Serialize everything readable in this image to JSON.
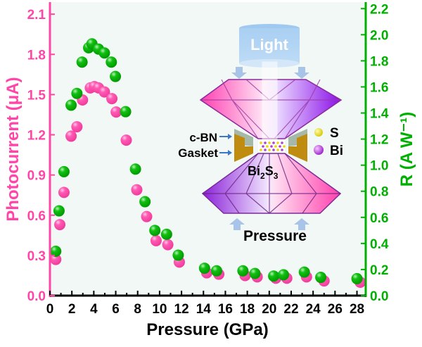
{
  "chart_data": {
    "type": "scatter",
    "xlabel": "Pressure (GPa)",
    "ylabel_left": "Photocurrent (μA)",
    "ylabel_right": "R (A W⁻¹)",
    "xlim": [
      0,
      28.8
    ],
    "ylim_left": [
      0,
      2.19
    ],
    "ylim_right": [
      0,
      2.25
    ],
    "xticks": [
      "0",
      "2",
      "4",
      "6",
      "8",
      "10",
      "12",
      "14",
      "16",
      "18",
      "20",
      "22",
      "24",
      "26",
      "28"
    ],
    "yticks_left": [
      "0.0",
      "0.3",
      "0.6",
      "0.9",
      "1.2",
      "1.5",
      "1.8",
      "2.1"
    ],
    "yticks_right": [
      "0.0",
      "0.2",
      "0.4",
      "0.6",
      "0.8",
      "1.0",
      "1.2",
      "1.4",
      "1.6",
      "1.8",
      "2.0",
      "2.2"
    ],
    "grid": false,
    "colors": {
      "photocurrent": "#ff45a8",
      "responsivity": "#00b000",
      "plot_bg": "#f2f8f6"
    },
    "series": [
      {
        "axis": "left",
        "color": "#ff45a8",
        "x": [
          0.53,
          0.9,
          1.28,
          1.93,
          2.46,
          2.97,
          3.68,
          4.05,
          4.43,
          4.97,
          5.65,
          6.04,
          6.96,
          7.92,
          8.82,
          9.68,
          10.75,
          11.8,
          14.3,
          15.4,
          17.8,
          18.9,
          20.6,
          21.6,
          23.4,
          25.0,
          28.3
        ],
        "y": [
          0.27,
          0.53,
          0.77,
          1.19,
          1.26,
          1.46,
          1.55,
          1.56,
          1.55,
          1.52,
          1.47,
          1.37,
          1.16,
          0.79,
          0.59,
          0.41,
          0.38,
          0.25,
          0.17,
          0.16,
          0.15,
          0.14,
          0.13,
          0.13,
          0.14,
          0.11,
          0.1
        ]
      },
      {
        "axis": "right",
        "color": "#00b000",
        "x": [
          0.53,
          0.83,
          1.28,
          1.93,
          2.46,
          2.93,
          3.53,
          3.83,
          4.43,
          4.97,
          5.6,
          5.97,
          6.9,
          7.8,
          8.67,
          9.57,
          10.64,
          11.7,
          14.1,
          15.2,
          17.6,
          18.7,
          20.4,
          21.3,
          23.2,
          24.7,
          28.0
        ],
        "y": [
          0.34,
          0.65,
          0.95,
          1.46,
          1.55,
          1.79,
          1.9,
          1.93,
          1.89,
          1.86,
          1.79,
          1.68,
          1.41,
          0.97,
          0.72,
          0.5,
          0.47,
          0.31,
          0.21,
          0.19,
          0.19,
          0.17,
          0.15,
          0.16,
          0.18,
          0.14,
          0.13
        ]
      }
    ]
  },
  "inset": {
    "light": "Light",
    "cbn": "c-BN",
    "gasket": "Gasket",
    "sample_main": "Bi",
    "sample_sub1": "2",
    "sample_s": "S",
    "sample_sub2": "3",
    "legend_s": "S",
    "legend_bi": "Bi",
    "pressure": "Pressure"
  }
}
